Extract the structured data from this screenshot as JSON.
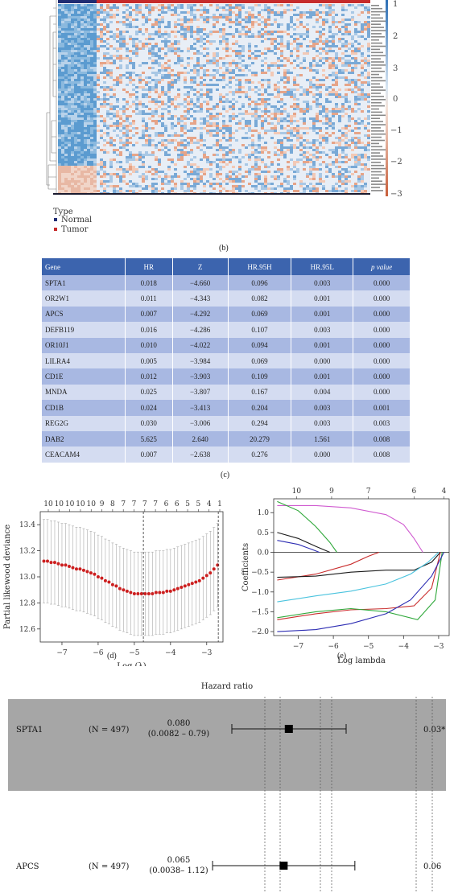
{
  "heatmap": {
    "type_title": "Type",
    "legend": [
      {
        "label": "Normal",
        "color": "#1f2c73"
      },
      {
        "label": "Tumor",
        "color": "#c62b2b"
      }
    ],
    "scale_ticks": [
      "1",
      "2",
      "3",
      "0",
      "−1",
      "−2",
      "−3"
    ],
    "caption": "(b)"
  },
  "table": {
    "headers": [
      "Gene",
      "HR",
      "Z",
      "HR.95H",
      "HR.95L",
      "p value"
    ],
    "rows": [
      [
        "SPTA1",
        "0.018",
        "−4.660",
        "0.096",
        "0.003",
        "0.000"
      ],
      [
        "OR2W1",
        "0.011",
        "−4.343",
        "0.082",
        "0.001",
        "0.000"
      ],
      [
        "APCS",
        "0.007",
        "−4.292",
        "0.069",
        "0.001",
        "0.000"
      ],
      [
        "DEFB119",
        "0.016",
        "−4.286",
        "0.107",
        "0.003",
        "0.000"
      ],
      [
        "OR10J1",
        "0.010",
        "−4.022",
        "0.094",
        "0.001",
        "0.000"
      ],
      [
        "LILRA4",
        "0.005",
        "−3.984",
        "0.069",
        "0.000",
        "0.000"
      ],
      [
        "CD1E",
        "0.012",
        "−3.903",
        "0.109",
        "0.001",
        "0.000"
      ],
      [
        "MNDA",
        "0.025",
        "−3.807",
        "0.167",
        "0.004",
        "0.000"
      ],
      [
        "CD1B",
        "0.024",
        "−3.413",
        "0.204",
        "0.003",
        "0.001"
      ],
      [
        "REG2G",
        "0.030",
        "−3.006",
        "0.294",
        "0.003",
        "0.003"
      ],
      [
        "DAB2",
        "5.625",
        "2.640",
        "20.279",
        "1.561",
        "0.008"
      ],
      [
        "CEACAM4",
        "0.007",
        "−2.638",
        "0.276",
        "0.000",
        "0.008"
      ]
    ],
    "caption": "(c)"
  },
  "chart_data": [
    {
      "type": "scatter",
      "panel": "(d)",
      "xlabel": "Log (λ)",
      "ylabel": "Partial likewood deviance",
      "xlim": [
        -7.6,
        -2.55
      ],
      "ylim": [
        12.5,
        13.5
      ],
      "x_ticks": [
        -7,
        -6,
        -5,
        -4,
        -3
      ],
      "y_ticks": [
        12.6,
        12.8,
        13.0,
        13.2,
        13.4
      ],
      "top_ticks": [
        "10",
        "10",
        "10",
        "10",
        "10",
        "9",
        "8",
        "7",
        "7",
        "7",
        "7",
        "6",
        "6",
        "5",
        "5",
        "4",
        "1"
      ],
      "vlines": [
        -4.75,
        -2.68
      ],
      "series": [
        {
          "x": [
            -7.5,
            -7.4,
            -7.3,
            -7.2,
            -7.1,
            -7.0,
            -6.9,
            -6.8,
            -6.7,
            -6.6,
            -6.5,
            -6.4,
            -6.3,
            -6.2,
            -6.1,
            -6.0,
            -5.9,
            -5.8,
            -5.7,
            -5.6,
            -5.5,
            -5.4,
            -5.3,
            -5.2,
            -5.1,
            -5.0,
            -4.9,
            -4.8,
            -4.7,
            -4.6,
            -4.5,
            -4.4,
            -4.3,
            -4.2,
            -4.1,
            -4.0,
            -3.9,
            -3.8,
            -3.7,
            -3.6,
            -3.5,
            -3.4,
            -3.3,
            -3.2,
            -3.1,
            -3.0,
            -2.9,
            -2.8,
            -2.7
          ],
          "y": [
            13.12,
            13.12,
            13.11,
            13.11,
            13.1,
            13.09,
            13.09,
            13.08,
            13.07,
            13.06,
            13.06,
            13.05,
            13.04,
            13.03,
            13.02,
            13.0,
            12.99,
            12.97,
            12.96,
            12.94,
            12.93,
            12.91,
            12.9,
            12.89,
            12.88,
            12.87,
            12.87,
            12.87,
            12.87,
            12.87,
            12.87,
            12.88,
            12.88,
            12.88,
            12.89,
            12.89,
            12.9,
            12.91,
            12.92,
            12.93,
            12.94,
            12.95,
            12.96,
            12.97,
            12.99,
            13.01,
            13.03,
            13.06,
            13.09
          ],
          "err": [
            0.32,
            0.32,
            0.32,
            0.32,
            0.32,
            0.32,
            0.32,
            0.32,
            0.32,
            0.32,
            0.32,
            0.32,
            0.32,
            0.32,
            0.32,
            0.32,
            0.32,
            0.32,
            0.32,
            0.32,
            0.32,
            0.32,
            0.32,
            0.32,
            0.32,
            0.32,
            0.32,
            0.32,
            0.32,
            0.32,
            0.32,
            0.32,
            0.32,
            0.32,
            0.32,
            0.32,
            0.32,
            0.32,
            0.32,
            0.32,
            0.32,
            0.32,
            0.32,
            0.32,
            0.32,
            0.32,
            0.32,
            0.32,
            0.32
          ]
        }
      ]
    },
    {
      "type": "line",
      "panel": "(e)",
      "xlabel": "Log lambda",
      "ylabel": "Coefficients",
      "xlim": [
        -7.7,
        -2.7
      ],
      "ylim": [
        -2.1,
        1.35
      ],
      "x_ticks": [
        -7,
        -6,
        -5,
        -4,
        -3
      ],
      "y_ticks": [
        -2.0,
        -1.5,
        -1.0,
        -0.5,
        0.0,
        0.5,
        1.0
      ],
      "top_ticks": [
        {
          "label": "10",
          "x": -7.05
        },
        {
          "label": "9",
          "x": -6.05
        },
        {
          "label": "7",
          "x": -5.0
        },
        {
          "label": "6",
          "x": -3.7
        },
        {
          "label": "4",
          "x": -2.85
        }
      ],
      "series": [
        {
          "color": "#d05bd0",
          "x": [
            -7.6,
            -6.5,
            -5.5,
            -4.5,
            -4.0,
            -3.7,
            -3.45
          ],
          "y": [
            1.18,
            1.18,
            1.12,
            0.95,
            0.7,
            0.35,
            0.0
          ]
        },
        {
          "color": "#2fa83a",
          "x": [
            -7.6,
            -7.0,
            -6.5,
            -6.1,
            -5.9
          ],
          "y": [
            1.28,
            1.05,
            0.65,
            0.25,
            0.0
          ]
        },
        {
          "color": "#1b1b1b",
          "x": [
            -7.6,
            -7.0,
            -6.5,
            -6.1
          ],
          "y": [
            0.5,
            0.35,
            0.15,
            0.0
          ]
        },
        {
          "color": "#2d2db3",
          "x": [
            -7.6,
            -7.0,
            -6.6,
            -6.4
          ],
          "y": [
            0.3,
            0.2,
            0.07,
            0.0
          ]
        },
        {
          "color": "#c92c2c",
          "x": [
            -7.6,
            -6.5,
            -5.5,
            -5.0,
            -4.7
          ],
          "y": [
            -0.7,
            -0.55,
            -0.3,
            -0.1,
            0.0
          ]
        },
        {
          "color": "#1b1b1b",
          "x": [
            -7.6,
            -6.5,
            -5.5,
            -4.5,
            -3.7,
            -3.2,
            -2.95
          ],
          "y": [
            -0.63,
            -0.6,
            -0.5,
            -0.45,
            -0.45,
            -0.25,
            0.0
          ]
        },
        {
          "color": "#4ac3de",
          "x": [
            -7.6,
            -6.5,
            -5.5,
            -4.5,
            -3.8,
            -3.3,
            -3.0
          ],
          "y": [
            -1.25,
            -1.1,
            -0.98,
            -0.8,
            -0.55,
            -0.25,
            0.0
          ]
        },
        {
          "color": "#c92c2c",
          "x": [
            -7.6,
            -6.5,
            -5.5,
            -4.5,
            -3.7,
            -3.2,
            -2.95
          ],
          "y": [
            -1.7,
            -1.55,
            -1.45,
            -1.42,
            -1.35,
            -0.9,
            0.0
          ]
        },
        {
          "color": "#2fa83a",
          "x": [
            -7.6,
            -6.5,
            -5.5,
            -4.5,
            -3.6,
            -3.1,
            -2.9
          ],
          "y": [
            -1.65,
            -1.5,
            -1.42,
            -1.5,
            -1.7,
            -1.2,
            0.0
          ]
        },
        {
          "color": "#2d2db3",
          "x": [
            -7.6,
            -6.5,
            -5.5,
            -4.5,
            -3.8,
            -3.2,
            -2.85
          ],
          "y": [
            -2.0,
            -1.95,
            -1.8,
            -1.55,
            -1.2,
            -0.6,
            0.0
          ]
        }
      ]
    }
  ],
  "captions": {
    "d": "(d)",
    "e": "(e)"
  },
  "forest": {
    "title": "Hazard ratio",
    "rows": [
      {
        "gene": "SPTA1",
        "n": "(N = 497)",
        "hr": "0.080",
        "ci": "(0.0082 – 0.79)",
        "p": "0.03*",
        "est": 0.08,
        "lo": 0.0082,
        "hi": 0.79,
        "shaded": true
      },
      {
        "gene": "APCS",
        "n": "(N = 497)",
        "hr": "0.065",
        "ci": "(0.0038– 1.12)",
        "p": "0.06",
        "est": 0.065,
        "lo": 0.0038,
        "hi": 1.12,
        "shaded": false
      }
    ]
  }
}
